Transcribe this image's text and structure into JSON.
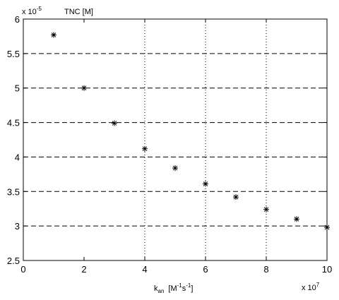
{
  "chart_data": {
    "type": "scatter",
    "marker": "*",
    "x": [
      1,
      2,
      3,
      4,
      5,
      6,
      7,
      8,
      9,
      10
    ],
    "y": [
      5.77,
      5.0,
      4.49,
      4.12,
      3.84,
      3.61,
      3.42,
      3.24,
      3.1,
      2.98
    ],
    "xlim": [
      0,
      10
    ],
    "ylim": [
      2.5,
      6
    ],
    "xticks": [
      0,
      2,
      4,
      6,
      8,
      10
    ],
    "yticks": [
      2.5,
      3,
      3.5,
      4,
      4.5,
      5,
      5.5,
      6
    ],
    "xtick_labels": [
      "0",
      "2",
      "4",
      "6",
      "8",
      "10"
    ],
    "ytick_labels": [
      "2.5",
      "3",
      "3.5",
      "4",
      "4.5",
      "5",
      "5.5",
      "6"
    ],
    "x_exponent": {
      "base": "x 10",
      "power": "7"
    },
    "y_exponent": {
      "base": "x 10",
      "power": "-5"
    },
    "ylabel": "TNC [M]",
    "xlabel": {
      "main": "k",
      "sub": "an",
      "unit_open": "[M",
      "unit_sup1": "-1",
      "unit_s": "s",
      "unit_sup2": "-1",
      "unit_close": "]"
    },
    "grid": {
      "dashed_y": [
        3,
        3.5,
        4,
        4.5,
        5,
        5.5
      ],
      "dotted_x": [
        4,
        6,
        8
      ]
    },
    "colors": {
      "axes": "#000000",
      "grid": "#000000",
      "markers": "#000000"
    }
  }
}
